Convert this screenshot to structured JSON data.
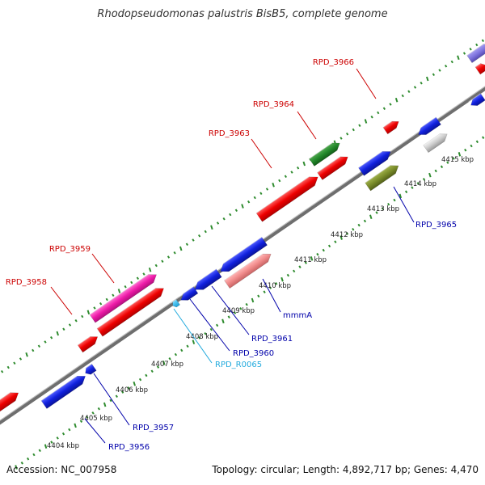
{
  "title": "Rhodopseudomonas palustris BisB5, complete genome",
  "footer": {
    "accession": "Accession: NC_007958",
    "summary": "Topology: circular; Length: 4,892,717 bp; Genes: 4,470"
  },
  "colors": {
    "backbone": "#7a7a7a",
    "tick": "#2e8b2e",
    "forward_label": "#cc0000",
    "reverse_label": "#0000aa",
    "rna_label": "#22aadd"
  },
  "scale": {
    "labels": [
      "4404 kbp",
      "4405 kbp",
      "4406 kbp",
      "4407 kbp",
      "4408 kbp",
      "4409 kbp",
      "4410 kbp",
      "4411 kbp",
      "4412 kbp",
      "4413 kbp",
      "4414 kbp",
      "4415 kbp"
    ]
  },
  "features": [
    {
      "name": "RPD_3956",
      "color": "blue",
      "labeled": true
    },
    {
      "name": "RPD_3957",
      "color": "blue",
      "labeled": true
    },
    {
      "name": "RPD_3958",
      "color": "red",
      "labeled": true
    },
    {
      "name": "RPD_3959",
      "color": "magenta",
      "labeled": true
    },
    {
      "name": "RPD_R0065",
      "color": "cyan",
      "labeled": true
    },
    {
      "name": "RPD_3960",
      "color": "blue",
      "labeled": true
    },
    {
      "name": "RPD_3961",
      "color": "blue",
      "labeled": true
    },
    {
      "name": "mmmA",
      "color": "pink",
      "labeled": true
    },
    {
      "name": "RPD_3963",
      "color": "red",
      "labeled": true
    },
    {
      "name": "RPD_3964",
      "color": "green",
      "labeled": true
    },
    {
      "name": "RPD_3965",
      "color": "olive",
      "labeled": true
    },
    {
      "name": "RPD_3966",
      "color": "red",
      "labeled": true
    }
  ]
}
